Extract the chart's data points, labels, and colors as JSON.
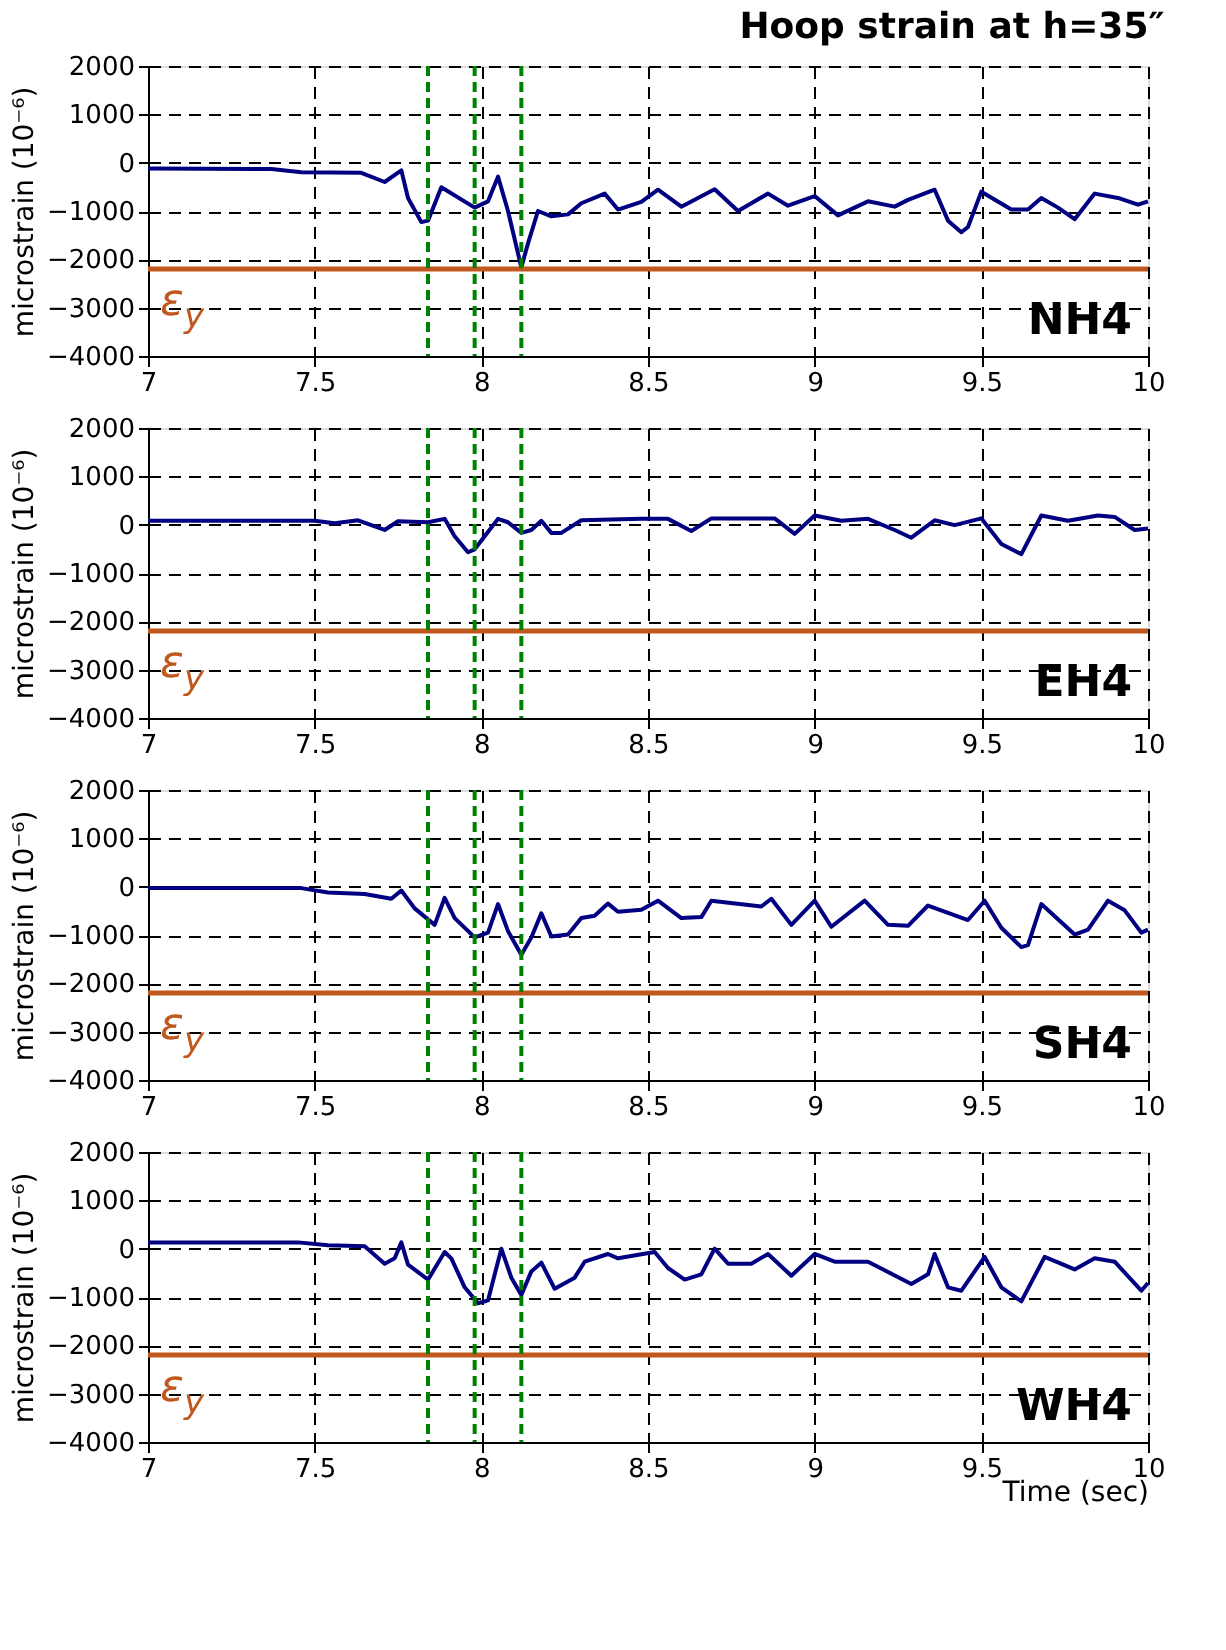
{
  "chart_data": [
    {
      "type": "line",
      "title": "Hoop strain at h=35″",
      "ylabel": "microstrain (10⁻⁶)",
      "xlim": [
        7,
        10
      ],
      "xticks": [
        7,
        7.5,
        8,
        8.5,
        9,
        9.5,
        10
      ],
      "ylim": [
        -4000,
        2000
      ],
      "yticks": [
        -4000,
        -3000,
        -2000,
        -1000,
        0,
        1000,
        2000
      ],
      "grid": true,
      "line_style": "solid",
      "marker": "none",
      "annotations": [
        "NH4"
      ],
      "ref_lines": [
        {
          "axis": "y",
          "value": -2200,
          "label": "ε$_{y}$",
          "color": "#c0581e",
          "line_style": "solid"
        },
        {
          "axis": "x",
          "value": 7.84,
          "color": "#008000",
          "line_style": "dashed"
        },
        {
          "axis": "x",
          "value": 7.98,
          "color": "#008000",
          "line_style": "dashed"
        },
        {
          "axis": "x",
          "value": 8.12,
          "color": "#008000",
          "line_style": "dashed"
        }
      ],
      "series": [
        {
          "color": "#000080",
          "x": [
            7,
            7.37,
            7.46,
            7.64,
            7.71,
            7.76,
            7.78,
            7.82,
            7.84,
            7.88,
            7.98,
            8.02,
            8.05,
            8.08,
            8.12,
            8.14,
            8.17,
            8.21,
            8.26,
            8.3,
            8.37,
            8.41,
            8.48,
            8.53,
            8.6,
            8.7,
            8.77,
            8.86,
            8.92,
            9.0,
            9.07,
            9.16,
            9.24,
            9.28,
            9.36,
            9.4,
            9.44,
            9.46,
            9.5,
            9.59,
            9.64,
            9.68,
            9.73,
            9.78,
            9.84,
            9.91,
            9.97,
            10
          ],
          "values": [
            -120,
            -130,
            -200,
            -210,
            -400,
            -160,
            -730,
            -1230,
            -1200,
            -510,
            -930,
            -800,
            -290,
            -1000,
            -2170,
            -1670,
            -1000,
            -1110,
            -1070,
            -840,
            -640,
            -970,
            -810,
            -560,
            -910,
            -550,
            -1000,
            -640,
            -890,
            -690,
            -1090,
            -800,
            -910,
            -770,
            -560,
            -1200,
            -1440,
            -1330,
            -600,
            -970,
            -970,
            -730,
            -930,
            -1170,
            -640,
            -730,
            -870,
            -800
          ]
        }
      ]
    },
    {
      "type": "line",
      "ylabel": "microstrain (10⁻⁶)",
      "xlim": [
        7,
        10
      ],
      "xticks": [
        7,
        7.5,
        8,
        8.5,
        9,
        9.5,
        10
      ],
      "ylim": [
        -4000,
        2000
      ],
      "yticks": [
        -4000,
        -3000,
        -2000,
        -1000,
        0,
        1000,
        2000
      ],
      "grid": true,
      "line_style": "solid",
      "marker": "none",
      "annotations": [
        "EH4"
      ],
      "ref_lines": [
        {
          "axis": "y",
          "value": -2200,
          "label": "ε$_{y}$",
          "color": "#c0581e",
          "line_style": "solid"
        },
        {
          "axis": "x",
          "value": 7.84,
          "color": "#008000",
          "line_style": "dashed"
        },
        {
          "axis": "x",
          "value": 7.98,
          "color": "#008000",
          "line_style": "dashed"
        },
        {
          "axis": "x",
          "value": 8.12,
          "color": "#008000",
          "line_style": "dashed"
        }
      ],
      "series": [
        {
          "color": "#000080",
          "x": [
            7,
            7.5,
            7.56,
            7.63,
            7.67,
            7.71,
            7.75,
            7.84,
            7.89,
            7.92,
            7.96,
            7.98,
            8.01,
            8.05,
            8.08,
            8.12,
            8.15,
            8.18,
            8.21,
            8.24,
            8.3,
            8.48,
            8.56,
            8.63,
            8.69,
            8.88,
            8.94,
            9.0,
            9.08,
            9.16,
            9.24,
            9.29,
            9.36,
            9.42,
            9.5,
            9.56,
            9.62,
            9.68,
            9.76,
            9.85,
            9.9,
            9.96,
            10
          ],
          "values": [
            80,
            80,
            30,
            90,
            -10,
            -110,
            70,
            50,
            120,
            -240,
            -570,
            -510,
            -240,
            120,
            50,
            -170,
            -110,
            80,
            -170,
            -170,
            90,
            120,
            120,
            -130,
            130,
            130,
            -190,
            190,
            80,
            120,
            -110,
            -270,
            90,
            -10,
            130,
            -400,
            -610,
            190,
            80,
            190,
            160,
            -110,
            -80
          ]
        }
      ]
    },
    {
      "type": "line",
      "ylabel": "microstrain (10⁻⁶)",
      "xlim": [
        7,
        10
      ],
      "xticks": [
        7,
        7.5,
        8,
        8.5,
        9,
        9.5,
        10
      ],
      "ylim": [
        -4000,
        2000
      ],
      "yticks": [
        -4000,
        -3000,
        -2000,
        -1000,
        0,
        1000,
        2000
      ],
      "grid": true,
      "line_style": "solid",
      "marker": "none",
      "annotations": [
        "SH4"
      ],
      "ref_lines": [
        {
          "axis": "y",
          "value": -2200,
          "label": "ε$_{y}$",
          "color": "#c0581e",
          "line_style": "solid"
        },
        {
          "axis": "x",
          "value": 7.84,
          "color": "#008000",
          "line_style": "dashed"
        },
        {
          "axis": "x",
          "value": 7.98,
          "color": "#008000",
          "line_style": "dashed"
        },
        {
          "axis": "x",
          "value": 8.12,
          "color": "#008000",
          "line_style": "dashed"
        }
      ],
      "series": [
        {
          "color": "#000080",
          "x": [
            7,
            7.46,
            7.54,
            7.65,
            7.73,
            7.76,
            7.8,
            7.86,
            7.89,
            7.92,
            7.98,
            8.02,
            8.05,
            8.08,
            8.12,
            8.15,
            8.18,
            8.21,
            8.26,
            8.3,
            8.34,
            8.38,
            8.41,
            8.48,
            8.53,
            8.6,
            8.66,
            8.69,
            8.84,
            8.87,
            8.93,
            9.0,
            9.05,
            9.15,
            9.22,
            9.28,
            9.34,
            9.46,
            9.51,
            9.56,
            9.62,
            9.64,
            9.68,
            9.78,
            9.82,
            9.88,
            9.93,
            9.98,
            10
          ],
          "values": [
            -30,
            -30,
            -120,
            -150,
            -250,
            -80,
            -450,
            -790,
            -230,
            -650,
            -1050,
            -950,
            -360,
            -920,
            -1410,
            -1050,
            -550,
            -1030,
            -990,
            -650,
            -600,
            -350,
            -520,
            -480,
            -290,
            -650,
            -630,
            -290,
            -410,
            -250,
            -790,
            -290,
            -830,
            -290,
            -790,
            -810,
            -390,
            -690,
            -290,
            -850,
            -1250,
            -1210,
            -360,
            -990,
            -890,
            -290,
            -490,
            -950,
            -890
          ]
        }
      ]
    },
    {
      "type": "line",
      "ylabel": "microstrain (10⁻⁶)",
      "xlabel": "Time (sec)",
      "xlim": [
        7,
        10
      ],
      "xticks": [
        7,
        7.5,
        8,
        8.5,
        9,
        9.5,
        10
      ],
      "ylim": [
        -4000,
        2000
      ],
      "yticks": [
        -4000,
        -3000,
        -2000,
        -1000,
        0,
        1000,
        2000
      ],
      "grid": true,
      "line_style": "solid",
      "marker": "none",
      "annotations": [
        "WH4"
      ],
      "ref_lines": [
        {
          "axis": "y",
          "value": -2200,
          "label": "ε$_{y}$",
          "color": "#c0581e",
          "line_style": "solid"
        },
        {
          "axis": "x",
          "value": 7.84,
          "color": "#008000",
          "line_style": "dashed"
        },
        {
          "axis": "x",
          "value": 7.98,
          "color": "#008000",
          "line_style": "dashed"
        },
        {
          "axis": "x",
          "value": 8.12,
          "color": "#008000",
          "line_style": "dashed"
        }
      ],
      "series": [
        {
          "color": "#000080",
          "x": [
            7,
            7.45,
            7.54,
            7.65,
            7.71,
            7.74,
            7.76,
            7.78,
            7.84,
            7.89,
            7.91,
            7.95,
            7.99,
            8.02,
            8.06,
            8.09,
            8.12,
            8.15,
            8.18,
            8.22,
            8.28,
            8.31,
            8.38,
            8.41,
            8.52,
            8.56,
            8.61,
            8.66,
            8.7,
            8.74,
            8.81,
            8.86,
            8.93,
            9.0,
            9.06,
            9.16,
            9.29,
            9.34,
            9.36,
            9.4,
            9.44,
            9.51,
            9.56,
            9.62,
            9.69,
            9.78,
            9.84,
            9.9,
            9.98,
            10
          ],
          "values": [
            130,
            130,
            70,
            50,
            -310,
            -200,
            130,
            -330,
            -640,
            -70,
            -200,
            -800,
            -1130,
            -1070,
            0,
            -600,
            -960,
            -470,
            -290,
            -830,
            -600,
            -270,
            -110,
            -200,
            -70,
            -400,
            -640,
            -530,
            0,
            -310,
            -310,
            -110,
            -560,
            -110,
            -270,
            -270,
            -730,
            -530,
            -110,
            -800,
            -870,
            -170,
            -800,
            -1090,
            -170,
            -430,
            -200,
            -270,
            -870,
            -710
          ]
        }
      ]
    }
  ]
}
